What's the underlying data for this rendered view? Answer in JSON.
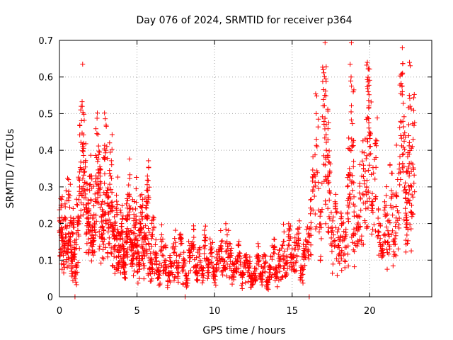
{
  "chart_data": {
    "type": "scatter",
    "title": "Day 076 of 2024, SRMTID for receiver p364",
    "xlabel": "GPS time / hours",
    "ylabel": "SRMTID / TECUs",
    "xlim": [
      0,
      24
    ],
    "ylim": [
      0,
      0.7
    ],
    "xticks": [
      0,
      5,
      10,
      15,
      20
    ],
    "yticks": [
      0,
      0.1,
      0.2,
      0.3,
      0.4,
      0.5,
      0.6,
      0.7
    ],
    "xtick_labels": [
      "0",
      "5",
      "10",
      "15",
      "20"
    ],
    "ytick_labels": [
      "0",
      "0.1",
      "0.2",
      "0.3",
      "0.4",
      "0.5",
      "0.6",
      "0.7"
    ],
    "grid": true,
    "marker": "+",
    "marker_color": "#ff0000",
    "series": [
      {
        "name": "SRMTID",
        "x": [
          0.0,
          0.1,
          0.2,
          0.3,
          0.4,
          0.5,
          0.6,
          0.7,
          0.8,
          0.9,
          1.0,
          1.1,
          1.2,
          1.3,
          1.4,
          1.5,
          1.6,
          1.7,
          1.8,
          1.9,
          2.0,
          2.1,
          2.2,
          2.3,
          2.4,
          2.5,
          2.6,
          2.7,
          2.8,
          2.9,
          3.0,
          3.1,
          3.2,
          3.3,
          3.4,
          3.5,
          3.6,
          3.7,
          3.8,
          3.9,
          4.0,
          4.1,
          4.2,
          4.3,
          4.4,
          4.5,
          4.6,
          4.7,
          4.8,
          4.9,
          5.0,
          5.1,
          5.2,
          5.3,
          5.4,
          5.5,
          5.6,
          5.7,
          5.8,
          5.9,
          6.0,
          6.2,
          6.4,
          6.6,
          6.8,
          7.0,
          7.2,
          7.4,
          7.6,
          7.8,
          8.0,
          8.2,
          8.4,
          8.6,
          8.8,
          9.0,
          9.2,
          9.4,
          9.6,
          9.8,
          10.0,
          10.2,
          10.4,
          10.6,
          10.8,
          11.0,
          11.2,
          11.4,
          11.6,
          11.8,
          12.0,
          12.2,
          12.4,
          12.6,
          12.8,
          13.0,
          13.2,
          13.4,
          13.6,
          13.8,
          14.0,
          14.2,
          14.4,
          14.6,
          14.8,
          15.0,
          15.2,
          15.4,
          15.6,
          15.8,
          16.0,
          16.2,
          16.4,
          16.6,
          16.8,
          17.0,
          17.1,
          17.2,
          17.3,
          17.4,
          17.6,
          17.8,
          18.0,
          18.2,
          18.4,
          18.6,
          18.7,
          18.8,
          18.9,
          19.0,
          19.2,
          19.4,
          19.6,
          19.8,
          19.85,
          19.9,
          20.0,
          20.2,
          20.4,
          20.6,
          20.8,
          21.0,
          21.2,
          21.4,
          21.6,
          21.8,
          22.0,
          22.1,
          22.2,
          22.3,
          22.4,
          22.5,
          22.6,
          22.7,
          22.8
        ],
        "y": [
          0.18,
          0.25,
          0.16,
          0.14,
          0.21,
          0.12,
          0.27,
          0.15,
          0.1,
          0.19,
          0.13,
          0.08,
          0.22,
          0.3,
          0.52,
          0.41,
          0.34,
          0.27,
          0.2,
          0.24,
          0.33,
          0.17,
          0.15,
          0.26,
          0.38,
          0.29,
          0.35,
          0.22,
          0.19,
          0.31,
          0.4,
          0.27,
          0.21,
          0.33,
          0.25,
          0.18,
          0.14,
          0.23,
          0.11,
          0.16,
          0.2,
          0.13,
          0.09,
          0.17,
          0.22,
          0.28,
          0.15,
          0.11,
          0.19,
          0.24,
          0.14,
          0.09,
          0.18,
          0.22,
          0.12,
          0.16,
          0.26,
          0.29,
          0.13,
          0.08,
          0.17,
          0.12,
          0.07,
          0.15,
          0.1,
          0.06,
          0.09,
          0.13,
          0.08,
          0.16,
          0.1,
          0.05,
          0.12,
          0.15,
          0.08,
          0.11,
          0.07,
          0.14,
          0.09,
          0.12,
          0.06,
          0.1,
          0.13,
          0.08,
          0.15,
          0.11,
          0.07,
          0.09,
          0.12,
          0.06,
          0.1,
          0.08,
          0.05,
          0.07,
          0.11,
          0.06,
          0.09,
          0.04,
          0.08,
          0.12,
          0.07,
          0.1,
          0.14,
          0.09,
          0.18,
          0.11,
          0.13,
          0.16,
          0.08,
          0.12,
          0.15,
          0.19,
          0.3,
          0.41,
          0.22,
          0.62,
          0.55,
          0.47,
          0.38,
          0.29,
          0.18,
          0.24,
          0.14,
          0.2,
          0.16,
          0.25,
          0.33,
          0.6,
          0.41,
          0.22,
          0.18,
          0.27,
          0.35,
          0.3,
          0.64,
          0.56,
          0.45,
          0.26,
          0.38,
          0.2,
          0.13,
          0.22,
          0.17,
          0.29,
          0.15,
          0.32,
          0.44,
          0.56,
          0.39,
          0.27,
          0.21,
          0.35,
          0.52,
          0.3,
          0.43
        ],
        "zero_points_x": [
          1.0,
          8.1,
          16.1
        ]
      }
    ]
  }
}
